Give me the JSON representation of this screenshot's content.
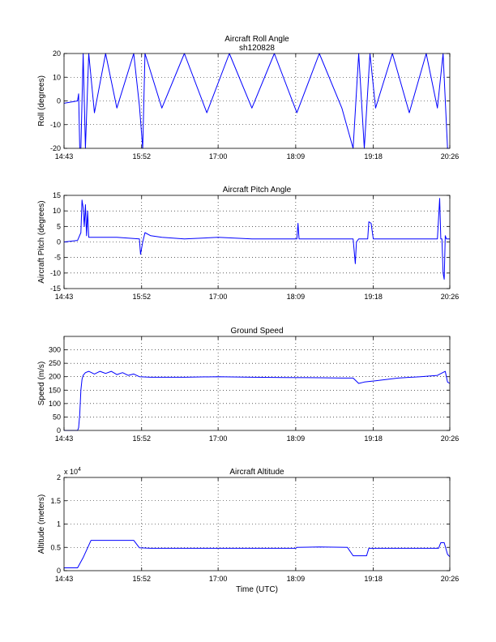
{
  "figure": {
    "xlabel": "Time (UTC)"
  },
  "chart_data": [
    {
      "type": "line",
      "title": "Aircraft Roll Angle",
      "subtitle": "sh120828",
      "xlabel": "",
      "ylabel": "Roll (degrees)",
      "xlim": [
        "14:43",
        "20:26"
      ],
      "x_ticks": [
        "14:43",
        "15:52",
        "17:00",
        "18:09",
        "19:18",
        "20:26"
      ],
      "ylim": [
        -20,
        20
      ],
      "y_ticks": [
        "20",
        "10",
        "0",
        "-10",
        "-20"
      ],
      "grid": true,
      "series": [
        {
          "color": "#0000ff",
          "x": [
            "14:43",
            "14:55",
            "14:56",
            "14:57",
            "14:58",
            "15:00",
            "15:02",
            "15:05",
            "15:10",
            "15:20",
            "15:30",
            "15:45",
            "15:50",
            "15:53",
            "15:55",
            "16:10",
            "16:30",
            "16:50",
            "17:10",
            "17:30",
            "17:50",
            "18:10",
            "18:30",
            "18:50",
            "19:00",
            "19:05",
            "19:10",
            "19:15",
            "19:20",
            "19:35",
            "19:50",
            "20:05",
            "20:15",
            "20:20",
            "20:24",
            "20:26"
          ],
          "y": [
            -1,
            0,
            3,
            -20,
            -20,
            20,
            -20,
            20,
            -5,
            20,
            -3,
            20,
            -2,
            -20,
            20,
            -3,
            20,
            -5,
            20,
            -3,
            20,
            -5,
            20,
            -3,
            -20,
            20,
            -20,
            20,
            -3,
            20,
            -5,
            20,
            -3,
            20,
            -20,
            -20
          ]
        }
      ]
    },
    {
      "type": "line",
      "title": "Aircraft Pitch Angle",
      "xlabel": "",
      "ylabel": "Aircraft Pitch (degrees)",
      "xlim": [
        "14:43",
        "20:26"
      ],
      "x_ticks": [
        "14:43",
        "15:52",
        "17:00",
        "18:09",
        "19:18",
        "20:26"
      ],
      "ylim": [
        -15,
        15
      ],
      "y_ticks": [
        "15",
        "10",
        "5",
        "0",
        "-5",
        "-10",
        "-15"
      ],
      "grid": true,
      "series": [
        {
          "color": "#0000ff",
          "x": [
            "14:43",
            "14:55",
            "14:58",
            "14:59",
            "15:00",
            "15:01",
            "15:02",
            "15:03",
            "15:04",
            "15:05",
            "15:06",
            "15:10",
            "15:30",
            "15:50",
            "15:51",
            "15:53",
            "15:55",
            "16:00",
            "16:10",
            "16:30",
            "17:00",
            "17:30",
            "18:00",
            "18:10",
            "18:11",
            "18:12",
            "18:30",
            "18:50",
            "19:00",
            "19:02",
            "19:03",
            "19:05",
            "19:10",
            "19:13",
            "19:14",
            "19:16",
            "19:18",
            "19:30",
            "19:50",
            "20:10",
            "20:15",
            "20:17",
            "20:18",
            "20:19",
            "20:20",
            "20:21",
            "20:22",
            "20:23",
            "20:24",
            "20:26"
          ],
          "y": [
            0,
            0.5,
            3,
            13.5,
            11,
            5,
            12,
            2,
            10,
            1.5,
            1.5,
            1.5,
            1.5,
            1,
            -4,
            0,
            3,
            2,
            1.5,
            1,
            1.5,
            1,
            1,
            1,
            6,
            1,
            1,
            1,
            1,
            -7,
            0,
            1,
            1,
            1,
            6.5,
            6,
            1,
            1,
            1,
            1,
            1,
            14,
            1,
            1,
            -10,
            -12,
            2,
            1,
            1,
            1
          ]
        }
      ]
    },
    {
      "type": "line",
      "title": "Ground Speed",
      "xlabel": "",
      "ylabel": "Speed (m/s)",
      "xlim": [
        "14:43",
        "20:26"
      ],
      "x_ticks": [
        "14:43",
        "15:52",
        "17:00",
        "18:09",
        "19:18",
        "20:26"
      ],
      "ylim": [
        0,
        350
      ],
      "y_ticks": [
        "300",
        "250",
        "200",
        "150",
        "100",
        "50",
        "0"
      ],
      "grid": true,
      "series": [
        {
          "color": "#0000ff",
          "x": [
            "14:43",
            "14:55",
            "14:56",
            "14:57",
            "14:58",
            "14:59",
            "15:00",
            "15:02",
            "15:05",
            "15:10",
            "15:15",
            "15:20",
            "15:25",
            "15:30",
            "15:35",
            "15:40",
            "15:45",
            "15:50",
            "16:00",
            "16:30",
            "17:00",
            "17:30",
            "18:00",
            "18:30",
            "18:50",
            "19:00",
            "19:05",
            "19:10",
            "19:20",
            "19:40",
            "20:00",
            "20:15",
            "20:22",
            "20:24",
            "20:26"
          ],
          "y": [
            0,
            0,
            10,
            60,
            150,
            190,
            205,
            215,
            220,
            210,
            220,
            212,
            220,
            208,
            215,
            205,
            210,
            200,
            198,
            198,
            200,
            198,
            197,
            196,
            195,
            195,
            175,
            180,
            185,
            195,
            200,
            205,
            220,
            180,
            175
          ]
        }
      ]
    },
    {
      "type": "line",
      "title": "Aircraft Altitude",
      "xlabel": "Time (UTC)",
      "ylabel": "Altitude (meters)",
      "y_multiplier": "x 10",
      "y_multiplier_exp": "4",
      "xlim": [
        "14:43",
        "20:26"
      ],
      "x_ticks": [
        "14:43",
        "15:52",
        "17:00",
        "18:09",
        "19:18",
        "20:26"
      ],
      "ylim": [
        0,
        20000
      ],
      "y_ticks": [
        "2",
        "1.5",
        "1",
        "0.5",
        "0"
      ],
      "grid": true,
      "series": [
        {
          "color": "#0000ff",
          "x": [
            "14:43",
            "14:55",
            "15:00",
            "15:07",
            "15:45",
            "15:50",
            "16:00",
            "17:00",
            "18:00",
            "18:09",
            "18:10",
            "18:30",
            "18:55",
            "19:00",
            "19:12",
            "19:14",
            "19:30",
            "20:00",
            "20:16",
            "20:18",
            "20:21",
            "20:24",
            "20:26"
          ],
          "y": [
            600,
            600,
            2800,
            6500,
            6500,
            4900,
            4800,
            4800,
            4800,
            4800,
            5000,
            5100,
            5000,
            3200,
            3200,
            4800,
            4800,
            4800,
            4800,
            6000,
            6000,
            3500,
            3000
          ]
        }
      ]
    }
  ]
}
